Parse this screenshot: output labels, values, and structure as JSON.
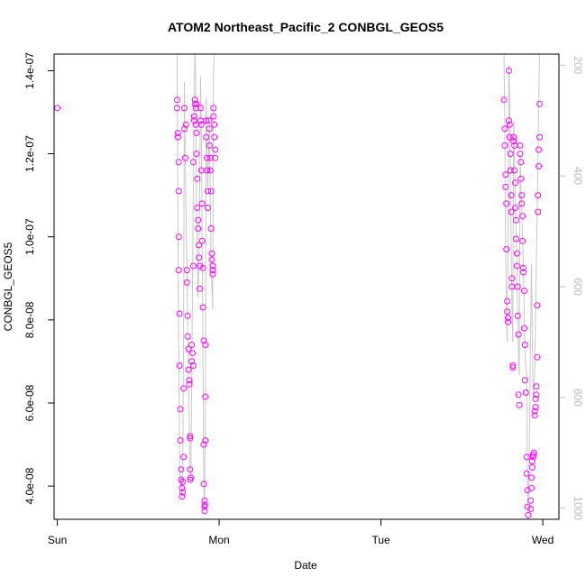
{
  "chart_data": {
    "type": "scatter",
    "title": "ATOM2 Northeast_Pacific_2 CONBGL_GEOS5",
    "xlabel": "Date",
    "ylabel": "CONBGL_GEOS5",
    "x_tick_labels": [
      "Sun",
      "Mon",
      "Tue",
      "Wed"
    ],
    "y_tick_labels": [
      "4.0e-08",
      "6.0e-08",
      "8.0e-08",
      "1.0e-07",
      "1.2e-07",
      "1.4e-07"
    ],
    "y_ticks": [
      4e-08,
      6e-08,
      8e-08,
      1e-07,
      1.2e-07,
      1.4e-07
    ],
    "right_axis_ticks": [
      200,
      400,
      600,
      800,
      1000
    ],
    "xlim": [
      -0.02,
      3.1
    ],
    "ylim": [
      3.2e-08,
      1.44e-07
    ],
    "right_ylim": [
      1020,
      180
    ],
    "point_color": "#ff00ff",
    "line_color": "#c8c8c8",
    "right_axis_color": "#b9b9b9",
    "series": [
      {
        "marker": "circle",
        "points": [
          [
            0.0,
            1.31e-07
          ],
          [
            0.74,
            1.33e-07
          ],
          [
            0.74,
            1.31e-07
          ],
          [
            0.745,
            1.25e-07
          ],
          [
            0.745,
            1.24e-07
          ],
          [
            0.75,
            1.18e-07
          ],
          [
            0.75,
            1.11e-07
          ],
          [
            0.75,
            1e-07
          ],
          [
            0.75,
            9.2e-08
          ],
          [
            0.755,
            8.15e-08
          ],
          [
            0.755,
            6.9e-08
          ],
          [
            0.76,
            5.85e-08
          ],
          [
            0.76,
            5.1e-08
          ],
          [
            0.765,
            4.4e-08
          ],
          [
            0.765,
            4.15e-08
          ],
          [
            0.77,
            3.95e-08
          ],
          [
            0.77,
            3.75e-08
          ],
          [
            0.775,
            3.85e-08
          ],
          [
            0.775,
            4.1e-08
          ],
          [
            0.78,
            4.7e-08
          ],
          [
            0.78,
            6.35e-08
          ],
          [
            0.785,
            1.31e-07
          ],
          [
            0.785,
            1.26e-07
          ],
          [
            0.79,
            1.19e-07
          ],
          [
            0.795,
            1.27e-07
          ],
          [
            0.8,
            9.2e-08
          ],
          [
            0.8,
            8.9e-08
          ],
          [
            0.805,
            8.1e-08
          ],
          [
            0.805,
            7.6e-08
          ],
          [
            0.81,
            7.3e-08
          ],
          [
            0.81,
            6.8e-08
          ],
          [
            0.815,
            6.45e-08
          ],
          [
            0.815,
            6.55e-08
          ],
          [
            0.82,
            5.2e-08
          ],
          [
            0.82,
            5.15e-08
          ],
          [
            0.82,
            4.4e-08
          ],
          [
            0.82,
            4.15e-08
          ],
          [
            0.825,
            4.2e-08
          ],
          [
            0.83,
            7e-08
          ],
          [
            0.83,
            7.4e-08
          ],
          [
            0.835,
            7.2e-08
          ],
          [
            0.84,
            6.9e-08
          ],
          [
            0.84,
            9.3e-08
          ],
          [
            0.84,
            1.18e-07
          ],
          [
            0.845,
            1.28e-07
          ],
          [
            0.845,
            1.29e-07
          ],
          [
            0.85,
            1.33e-07
          ],
          [
            0.85,
            1.32e-07
          ],
          [
            0.855,
            1.31e-07
          ],
          [
            0.855,
            1.27e-07
          ],
          [
            0.86,
            1.32e-07
          ],
          [
            0.86,
            1.25e-07
          ],
          [
            0.86,
            1.2e-07
          ],
          [
            0.865,
            1.14e-07
          ],
          [
            0.865,
            1.07e-07
          ],
          [
            0.87,
            1.04e-07
          ],
          [
            0.87,
            1.02e-07
          ],
          [
            0.875,
            9.8e-08
          ],
          [
            0.875,
            9.5e-08
          ],
          [
            0.88,
            9.3e-08
          ],
          [
            0.88,
            8.75e-08
          ],
          [
            0.885,
            1.31e-07
          ],
          [
            0.885,
            1.28e-07
          ],
          [
            0.89,
            1.27e-07
          ],
          [
            0.89,
            1.16e-07
          ],
          [
            0.895,
            1.08e-07
          ],
          [
            0.895,
            9.9e-08
          ],
          [
            0.9,
            9.25e-08
          ],
          [
            0.9,
            8.3e-08
          ],
          [
            0.905,
            7.5e-08
          ],
          [
            0.905,
            5e-08
          ],
          [
            0.905,
            4.05e-08
          ],
          [
            0.91,
            3.65e-08
          ],
          [
            0.91,
            3.5e-08
          ],
          [
            0.91,
            3.4e-08
          ],
          [
            0.912,
            3.55e-08
          ],
          [
            0.915,
            5.1e-08
          ],
          [
            0.915,
            7.4e-08
          ],
          [
            0.915,
            6.15e-08
          ],
          [
            0.92,
            1.28e-07
          ],
          [
            0.92,
            1.24e-07
          ],
          [
            0.925,
            1.19e-07
          ],
          [
            0.925,
            1.16e-07
          ],
          [
            0.93,
            1.11e-07
          ],
          [
            0.93,
            1.07e-07
          ],
          [
            0.935,
            1.28e-07
          ],
          [
            0.94,
            1.26e-07
          ],
          [
            0.94,
            1.22e-07
          ],
          [
            0.945,
            1.19e-07
          ],
          [
            0.945,
            1.16e-07
          ],
          [
            0.95,
            1.11e-07
          ],
          [
            0.95,
            1.02e-07
          ],
          [
            0.955,
            9.6e-08
          ],
          [
            0.955,
            9.45e-08
          ],
          [
            0.96,
            9.3e-08
          ],
          [
            0.96,
            9.2e-08
          ],
          [
            0.96,
            9.1e-08
          ],
          [
            0.965,
            1.31e-07
          ],
          [
            0.965,
            1.29e-07
          ],
          [
            0.97,
            1.27e-07
          ],
          [
            0.97,
            1.24e-07
          ],
          [
            0.975,
            1.21e-07
          ],
          [
            0.975,
            1.19e-07
          ],
          [
            2.76,
            1.33e-07
          ],
          [
            2.765,
            1.26e-07
          ],
          [
            2.765,
            1.22e-07
          ],
          [
            2.77,
            1.15e-07
          ],
          [
            2.77,
            1.12e-07
          ],
          [
            2.775,
            1.08e-07
          ],
          [
            2.775,
            9.7e-08
          ],
          [
            2.78,
            8.45e-08
          ],
          [
            2.78,
            8.2e-08
          ],
          [
            2.785,
            8.05e-08
          ],
          [
            2.785,
            7.95e-08
          ],
          [
            2.79,
            1.4e-07
          ],
          [
            2.79,
            1.28e-07
          ],
          [
            2.795,
            1.27e-07
          ],
          [
            2.795,
            1.24e-07
          ],
          [
            2.8,
            1.2e-07
          ],
          [
            2.8,
            1.16e-07
          ],
          [
            2.805,
            1.1e-07
          ],
          [
            2.805,
            1.06e-07
          ],
          [
            2.81,
            9e-08
          ],
          [
            2.81,
            8.8e-08
          ],
          [
            2.815,
            6.85e-08
          ],
          [
            2.815,
            6.9e-08
          ],
          [
            2.82,
            1.24e-07
          ],
          [
            2.82,
            1.23e-07
          ],
          [
            2.825,
            1.22e-07
          ],
          [
            2.825,
            1.16e-07
          ],
          [
            2.83,
            1.13e-07
          ],
          [
            2.83,
            1.07e-07
          ],
          [
            2.835,
            1.04e-07
          ],
          [
            2.835,
            9.95e-08
          ],
          [
            2.84,
            9.6e-08
          ],
          [
            2.84,
            9.3e-08
          ],
          [
            2.845,
            8.8e-08
          ],
          [
            2.845,
            8.1e-08
          ],
          [
            2.85,
            7.65e-08
          ],
          [
            2.85,
            6.2e-08
          ],
          [
            2.855,
            5.95e-08
          ],
          [
            2.86,
            1.22e-07
          ],
          [
            2.86,
            1.2e-07
          ],
          [
            2.865,
            1.18e-07
          ],
          [
            2.865,
            1.14e-07
          ],
          [
            2.87,
            1.1e-07
          ],
          [
            2.87,
            1.08e-07
          ],
          [
            2.875,
            1.05e-07
          ],
          [
            2.875,
            9.9e-08
          ],
          [
            2.88,
            9.25e-08
          ],
          [
            2.88,
            9.15e-08
          ],
          [
            2.885,
            8.7e-08
          ],
          [
            2.885,
            7.8e-08
          ],
          [
            2.89,
            7.4e-08
          ],
          [
            2.89,
            6.55e-08
          ],
          [
            2.895,
            6.25e-08
          ],
          [
            2.9,
            4.7e-08
          ],
          [
            2.9,
            4.3e-08
          ],
          [
            2.905,
            3.9e-08
          ],
          [
            2.905,
            3.5e-08
          ],
          [
            2.91,
            3.3e-08
          ],
          [
            2.91,
            3e-08
          ],
          [
            2.912,
            2.9e-08
          ],
          [
            2.915,
            2.85e-08
          ],
          [
            2.92,
            2.95e-08
          ],
          [
            2.92,
            3.1e-08
          ],
          [
            2.925,
            3.45e-08
          ],
          [
            2.925,
            3.65e-08
          ],
          [
            2.93,
            3.95e-08
          ],
          [
            2.93,
            4.2e-08
          ],
          [
            2.935,
            4.45e-08
          ],
          [
            2.935,
            4.6e-08
          ],
          [
            2.94,
            4.7e-08
          ],
          [
            2.94,
            4.75e-08
          ],
          [
            2.945,
            4.8e-08
          ],
          [
            2.95,
            5.7e-08
          ],
          [
            2.95,
            5.8e-08
          ],
          [
            2.955,
            5.9e-08
          ],
          [
            2.955,
            6.1e-08
          ],
          [
            2.96,
            6.2e-08
          ],
          [
            2.96,
            6.4e-08
          ],
          [
            2.965,
            7.1e-08
          ],
          [
            2.965,
            8.35e-08
          ],
          [
            2.97,
            1.06e-07
          ],
          [
            2.97,
            1.1e-07
          ],
          [
            2.975,
            1.17e-07
          ],
          [
            2.975,
            1.21e-07
          ],
          [
            2.98,
            1.24e-07
          ],
          [
            2.98,
            1.32e-07
          ]
        ]
      }
    ],
    "pressure_trace": [
      [
        0.74,
        175
      ],
      [
        0.745,
        460
      ],
      [
        0.75,
        700
      ],
      [
        0.755,
        900
      ],
      [
        0.76,
        960
      ],
      [
        0.765,
        940
      ],
      [
        0.77,
        980
      ],
      [
        0.775,
        920
      ],
      [
        0.78,
        680
      ],
      [
        0.785,
        230
      ],
      [
        0.79,
        360
      ],
      [
        0.8,
        560
      ],
      [
        0.81,
        760
      ],
      [
        0.82,
        930
      ],
      [
        0.825,
        950
      ],
      [
        0.83,
        760
      ],
      [
        0.84,
        440
      ],
      [
        0.845,
        240
      ],
      [
        0.85,
        175
      ],
      [
        0.855,
        220
      ],
      [
        0.86,
        450
      ],
      [
        0.87,
        620
      ],
      [
        0.875,
        560
      ],
      [
        0.88,
        420
      ],
      [
        0.885,
        220
      ],
      [
        0.89,
        300
      ],
      [
        0.9,
        720
      ],
      [
        0.905,
        960
      ],
      [
        0.91,
        1000
      ],
      [
        0.915,
        820
      ],
      [
        0.92,
        260
      ],
      [
        0.93,
        420
      ],
      [
        0.94,
        300
      ],
      [
        0.95,
        560
      ],
      [
        0.96,
        640
      ],
      [
        0.965,
        220
      ],
      [
        0.97,
        175
      ],
      [
        2.76,
        175
      ],
      [
        2.765,
        300
      ],
      [
        2.77,
        520
      ],
      [
        2.775,
        640
      ],
      [
        2.78,
        700
      ],
      [
        2.785,
        540
      ],
      [
        2.79,
        200
      ],
      [
        2.795,
        250
      ],
      [
        2.8,
        420
      ],
      [
        2.81,
        640
      ],
      [
        2.815,
        700
      ],
      [
        2.82,
        300
      ],
      [
        2.83,
        420
      ],
      [
        2.84,
        560
      ],
      [
        2.85,
        720
      ],
      [
        2.855,
        760
      ],
      [
        2.86,
        360
      ],
      [
        2.87,
        460
      ],
      [
        2.88,
        560
      ],
      [
        2.885,
        640
      ],
      [
        2.89,
        720
      ],
      [
        2.9,
        760
      ],
      [
        2.905,
        960
      ],
      [
        2.91,
        1000
      ],
      [
        2.915,
        940
      ],
      [
        2.92,
        800
      ],
      [
        2.93,
        560
      ],
      [
        2.94,
        800
      ],
      [
        2.95,
        760
      ],
      [
        2.96,
        560
      ],
      [
        2.97,
        380
      ],
      [
        2.975,
        260
      ],
      [
        2.98,
        175
      ]
    ]
  }
}
